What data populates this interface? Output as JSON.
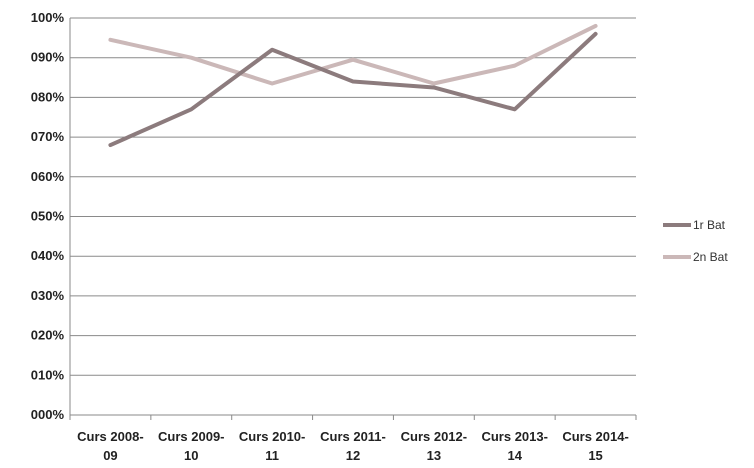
{
  "chart_data": {
    "type": "line",
    "categories": [
      [
        "Curs 2008-",
        "09"
      ],
      [
        "Curs 2009-",
        "10"
      ],
      [
        "Curs 2010-",
        "11"
      ],
      [
        "Curs 2011-",
        "12"
      ],
      [
        "Curs 2012-",
        "13"
      ],
      [
        "Curs 2013-",
        "14"
      ],
      [
        "Curs 2014-",
        "15"
      ]
    ],
    "series": [
      {
        "name": "1r Bat",
        "color": "#8c7b7d",
        "values": [
          68,
          77,
          92,
          84,
          82.5,
          77,
          96
        ]
      },
      {
        "name": "2n Bat",
        "color": "#cbb8b8",
        "values": [
          94.5,
          90,
          83.5,
          89.5,
          83.5,
          88,
          98
        ]
      }
    ],
    "ylim": [
      0,
      100
    ],
    "ytick_labels": [
      "000%",
      "010%",
      "020%",
      "030%",
      "040%",
      "050%",
      "060%",
      "070%",
      "080%",
      "090%",
      "100%"
    ],
    "grid": true,
    "legend_position": "right"
  }
}
